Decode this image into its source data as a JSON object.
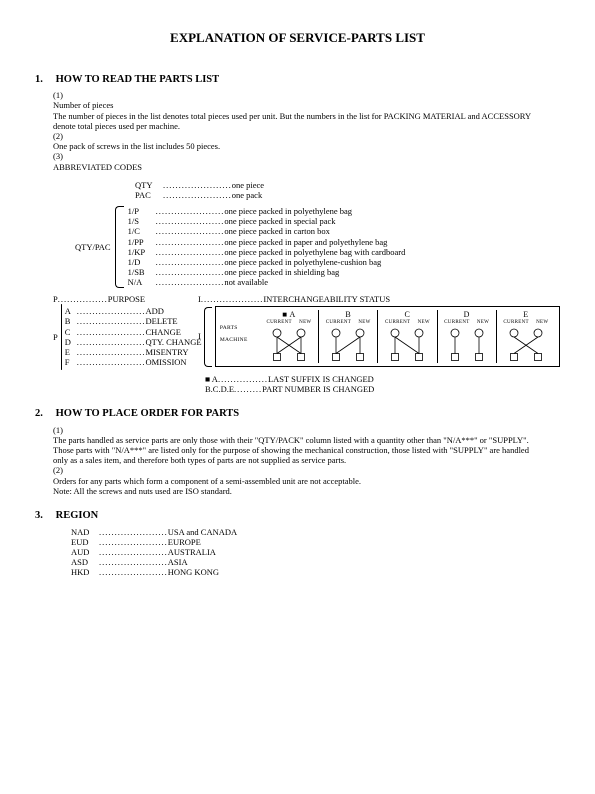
{
  "title": "EXPLANATION OF SERVICE-PARTS LIST",
  "sec1": {
    "num": "1.",
    "head": "HOW TO READ THE PARTS LIST",
    "item1_num": "(1)",
    "item1_label": "Number of pieces",
    "item1_body": "The number of pieces in the list denotes total pieces used per unit. But the numbers in the list for PACKING MATERIAL and ACCESSORY denote total pieces used per machine.",
    "item2_num": "(2)",
    "item2_body": "One pack of screws in the list includes 50 pieces.",
    "item3_num": "(3)",
    "item3_body": "ABBREVIATED CODES",
    "abbr_top": [
      {
        "k": "QTY",
        "v": "one piece"
      },
      {
        "k": "PAC",
        "v": "one pack"
      }
    ],
    "qtypac_label": "QTY/PAC",
    "abbr_brace": [
      {
        "k": "1/P",
        "v": "one piece packed in polyethylene bag"
      },
      {
        "k": "1/S",
        "v": "one piece packed in special pack"
      },
      {
        "k": "1/C",
        "v": "one piece packed in carton box"
      },
      {
        "k": "1/PP",
        "v": "one piece packed in paper and polyethylene bag"
      },
      {
        "k": "1/KP",
        "v": "one piece packed in polyethylene bag with cardboard"
      },
      {
        "k": "1/D",
        "v": "one piece packed in polyethylene-cushion bag"
      },
      {
        "k": "1/SB",
        "v": "one piece packed in shielding bag"
      },
      {
        "k": "N/A",
        "v": "not available"
      }
    ],
    "p_head": {
      "k": "P",
      "v": "PURPOSE"
    },
    "p_label": "P",
    "p_codes": [
      {
        "k": "A",
        "v": "ADD"
      },
      {
        "k": "B",
        "v": "DELETE"
      },
      {
        "k": "C",
        "v": "CHANGE"
      },
      {
        "k": "D",
        "v": "QTY. CHANGE"
      },
      {
        "k": "E",
        "v": "MISENTRY"
      },
      {
        "k": "F",
        "v": "OMISSION"
      }
    ],
    "i_head": {
      "k": "I",
      "v": "INTERCHANGEABILITY STATUS"
    },
    "i_label": "I",
    "i_cells": [
      "■ A",
      "B",
      "C",
      "D",
      "E"
    ],
    "i_colhdr_l": "CURRENT",
    "i_colhdr_r": "NEW",
    "i_row1": "PARTS",
    "i_row2": "MACHINE",
    "i_legend1": {
      "k": "■ A",
      "v": "LAST SUFFIX IS CHANGED"
    },
    "i_legend2": {
      "k": "B.C.D.E",
      "v": "PART NUMBER IS CHANGED"
    }
  },
  "sec2": {
    "num": "2.",
    "head": "HOW TO PLACE ORDER FOR PARTS",
    "item1_num": "(1)",
    "item1_a": "The parts handled as service parts are only those with their \"QTY/PACK\" column listed with a quantity other than \"N/A***\" or \"SUPPLY\".",
    "item1_b": "Those parts with \"N/A***\" are listed only for the purpose of showing the mechanical construction, those listed with \"SUPPLY\" are handled only as a sales item, and therefore both types of parts are not supplied as service parts.",
    "item2_num": "(2)",
    "item2_a": "Orders for any parts which form a component of a semi-assembled unit are not acceptable.",
    "item2_b": "Note: All the screws and nuts used are ISO standard."
  },
  "sec3": {
    "num": "3.",
    "head": "REGION",
    "regions": [
      {
        "k": "NAD",
        "v": "USA and CANADA"
      },
      {
        "k": "EUD",
        "v": "EUROPE"
      },
      {
        "k": "AUD",
        "v": "AUSTRALIA"
      },
      {
        "k": "ASD",
        "v": "ASIA"
      },
      {
        "k": "HKD",
        "v": "HONG KONG"
      }
    ]
  }
}
